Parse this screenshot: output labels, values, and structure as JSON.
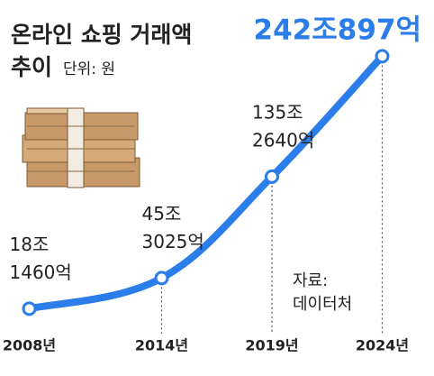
{
  "chart_data": {
    "type": "line",
    "title": [
      "온라인 쇼핑 거래액",
      "추이"
    ],
    "unit": "단위: 원",
    "source": [
      "자료:",
      "데이터처"
    ],
    "x": [
      2008,
      2014,
      2019,
      2024
    ],
    "xlim": [
      2007,
      2025
    ],
    "xticks": [
      {
        "value": 2008,
        "label": "2008년"
      },
      {
        "value": 2014,
        "label": "2014년"
      },
      {
        "value": 2019,
        "label": "2019년"
      },
      {
        "value": 2024,
        "label": "2024년"
      }
    ],
    "ylim": [
      0,
      250
    ],
    "series": [
      {
        "color": "#2b7de9",
        "values": [
          18.146,
          45.3025,
          135.264,
          242.0897
        ],
        "value_labels": [
          [
            "18조",
            "1460억"
          ],
          [
            "45조",
            "3025억"
          ],
          [
            "135조",
            "2640억"
          ],
          [
            "242조897억"
          ]
        ]
      }
    ]
  }
}
